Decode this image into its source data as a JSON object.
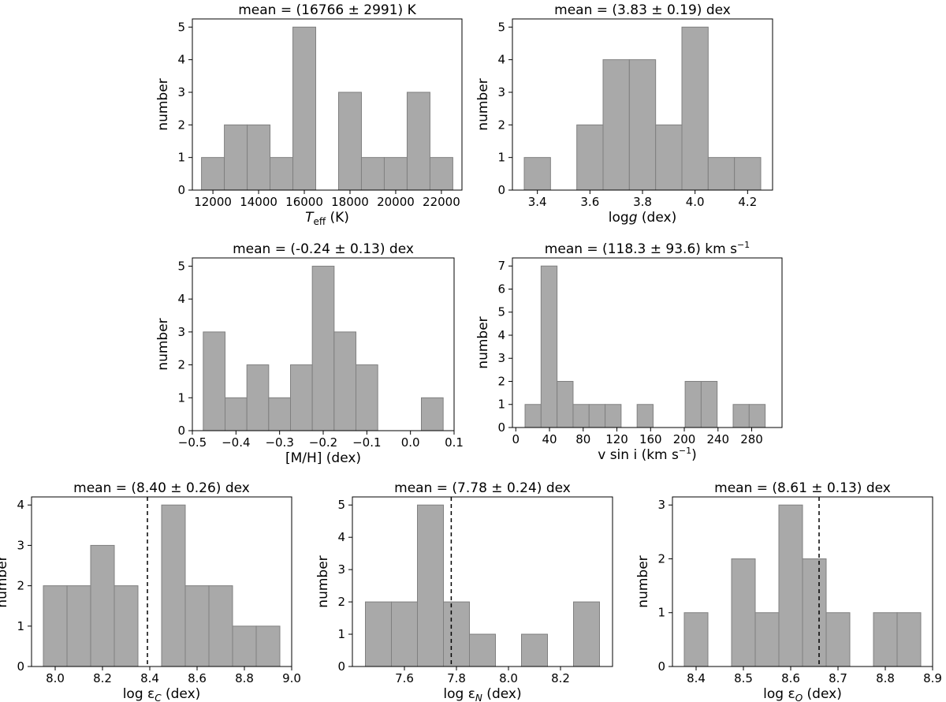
{
  "chart_data": [
    {
      "type": "bar",
      "id": "teff",
      "title": "mean = (16766 ± 2991) K",
      "xlabel_main": "T",
      "xlabel_sub": "eff",
      "xlabel_rest": " (K)",
      "ylabel": "number",
      "xlim": [
        11100,
        22900
      ],
      "ylim": [
        0,
        5.25
      ],
      "xticks": [
        12000,
        14000,
        16000,
        18000,
        20000,
        22000
      ],
      "xtick_labels": [
        "12000",
        "14000",
        "16000",
        "18000",
        "20000",
        "22000"
      ],
      "yticks": [
        0,
        1,
        2,
        3,
        4,
        5
      ],
      "ytick_labels": [
        "0",
        "1",
        "2",
        "3",
        "4",
        "5"
      ],
      "bins": [
        {
          "x0": 11500,
          "x1": 12500,
          "count": 1
        },
        {
          "x0": 12500,
          "x1": 13500,
          "count": 2
        },
        {
          "x0": 13500,
          "x1": 14500,
          "count": 2
        },
        {
          "x0": 14500,
          "x1": 15500,
          "count": 1
        },
        {
          "x0": 15500,
          "x1": 16500,
          "count": 5
        },
        {
          "x0": 17500,
          "x1": 18500,
          "count": 3
        },
        {
          "x0": 18500,
          "x1": 19500,
          "count": 1
        },
        {
          "x0": 19500,
          "x1": 20500,
          "count": 1
        },
        {
          "x0": 20500,
          "x1": 21500,
          "count": 3
        },
        {
          "x0": 21500,
          "x1": 22500,
          "count": 1
        }
      ]
    },
    {
      "type": "bar",
      "id": "logg",
      "title": "mean = (3.83 ± 0.19) dex",
      "xlabel_main": "log",
      "xlabel_sub": "g",
      "xlabel_rest": " (dex)",
      "ylabel": "number",
      "xlim": [
        3.305,
        4.295
      ],
      "ylim": [
        0,
        5.25
      ],
      "xticks": [
        3.4,
        3.6,
        3.8,
        4.0,
        4.2
      ],
      "xtick_labels": [
        "3.4",
        "3.6",
        "3.8",
        "4.0",
        "4.2"
      ],
      "yticks": [
        0,
        1,
        2,
        3,
        4,
        5
      ],
      "ytick_labels": [
        "0",
        "1",
        "2",
        "3",
        "4",
        "5"
      ],
      "bins": [
        {
          "x0": 3.35,
          "x1": 3.45,
          "count": 1
        },
        {
          "x0": 3.55,
          "x1": 3.65,
          "count": 2
        },
        {
          "x0": 3.65,
          "x1": 3.75,
          "count": 4
        },
        {
          "x0": 3.75,
          "x1": 3.85,
          "count": 4
        },
        {
          "x0": 3.85,
          "x1": 3.95,
          "count": 2
        },
        {
          "x0": 3.95,
          "x1": 4.05,
          "count": 5
        },
        {
          "x0": 4.05,
          "x1": 4.15,
          "count": 1
        },
        {
          "x0": 4.15,
          "x1": 4.25,
          "count": 1
        }
      ]
    },
    {
      "type": "bar",
      "id": "mh",
      "title": "mean = (-0.24 ± 0.13) dex",
      "xlabel_main": "[M/H] (dex)",
      "xlabel_sub": "",
      "xlabel_rest": "",
      "ylabel": "number",
      "xlim": [
        -0.5,
        0.1
      ],
      "ylim": [
        0,
        5.25
      ],
      "xticks": [
        -0.5,
        -0.4,
        -0.3,
        -0.2,
        -0.1,
        0.0,
        0.1
      ],
      "xtick_labels": [
        "−0.5",
        "−0.4",
        "−0.3",
        "−0.2",
        "−0.1",
        "0.0",
        "0.1"
      ],
      "yticks": [
        0,
        1,
        2,
        3,
        4,
        5
      ],
      "ytick_labels": [
        "0",
        "1",
        "2",
        "3",
        "4",
        "5"
      ],
      "bins": [
        {
          "x0": -0.475,
          "x1": -0.425,
          "count": 3
        },
        {
          "x0": -0.425,
          "x1": -0.375,
          "count": 1
        },
        {
          "x0": -0.375,
          "x1": -0.325,
          "count": 2
        },
        {
          "x0": -0.325,
          "x1": -0.275,
          "count": 1
        },
        {
          "x0": -0.275,
          "x1": -0.225,
          "count": 2
        },
        {
          "x0": -0.225,
          "x1": -0.175,
          "count": 5
        },
        {
          "x0": -0.175,
          "x1": -0.125,
          "count": 3
        },
        {
          "x0": -0.125,
          "x1": -0.075,
          "count": 2
        },
        {
          "x0": 0.025,
          "x1": 0.075,
          "count": 1
        }
      ]
    },
    {
      "type": "bar",
      "id": "vsini",
      "title": "mean = (118.3 ± 93.6) km s",
      "title_sup": "−1",
      "xlabel_main": "v sin i (km s",
      "xlabel_sup": "−1",
      "xlabel_close": ")",
      "ylabel": "number",
      "xlim": [
        -4,
        316
      ],
      "ylim": [
        0,
        7.35
      ],
      "xticks": [
        0,
        40,
        80,
        120,
        160,
        200,
        240,
        280
      ],
      "xtick_labels": [
        "0",
        "40",
        "80",
        "120",
        "160",
        "200",
        "240",
        "280"
      ],
      "yticks": [
        0,
        1,
        2,
        3,
        4,
        5,
        6,
        7
      ],
      "ytick_labels": [
        "0",
        "1",
        "2",
        "3",
        "4",
        "5",
        "6",
        "7"
      ],
      "bins": [
        {
          "x0": 11,
          "x1": 30,
          "count": 1
        },
        {
          "x0": 30,
          "x1": 49,
          "count": 7
        },
        {
          "x0": 49,
          "x1": 68,
          "count": 2
        },
        {
          "x0": 68,
          "x1": 87,
          "count": 1
        },
        {
          "x0": 87,
          "x1": 106,
          "count": 1
        },
        {
          "x0": 106,
          "x1": 125,
          "count": 1
        },
        {
          "x0": 144,
          "x1": 163,
          "count": 1
        },
        {
          "x0": 201,
          "x1": 220,
          "count": 2
        },
        {
          "x0": 220,
          "x1": 239,
          "count": 2
        },
        {
          "x0": 258,
          "x1": 277,
          "count": 1
        },
        {
          "x0": 277,
          "x1": 296,
          "count": 1
        }
      ]
    },
    {
      "type": "bar",
      "id": "logeps-c",
      "title": "mean = (8.40 ± 0.26) dex",
      "xlabel_main": "log ε",
      "xlabel_sub": "C",
      "xlabel_rest": " (dex)",
      "ylabel": "number",
      "xlim": [
        7.9,
        9.0
      ],
      "ylim": [
        0,
        4.2
      ],
      "xticks": [
        8.0,
        8.2,
        8.4,
        8.6,
        8.8,
        9.0
      ],
      "xtick_labels": [
        "8.0",
        "8.2",
        "8.4",
        "8.6",
        "8.8",
        "9.0"
      ],
      "yticks": [
        0,
        1,
        2,
        3,
        4
      ],
      "ytick_labels": [
        "0",
        "1",
        "2",
        "3",
        "4"
      ],
      "ref_line": 8.39,
      "bins": [
        {
          "x0": 7.95,
          "x1": 8.05,
          "count": 2
        },
        {
          "x0": 8.05,
          "x1": 8.15,
          "count": 2
        },
        {
          "x0": 8.15,
          "x1": 8.25,
          "count": 3
        },
        {
          "x0": 8.25,
          "x1": 8.35,
          "count": 2
        },
        {
          "x0": 8.45,
          "x1": 8.55,
          "count": 4
        },
        {
          "x0": 8.55,
          "x1": 8.65,
          "count": 2
        },
        {
          "x0": 8.65,
          "x1": 8.75,
          "count": 2
        },
        {
          "x0": 8.75,
          "x1": 8.85,
          "count": 1
        },
        {
          "x0": 8.85,
          "x1": 8.95,
          "count": 1
        }
      ]
    },
    {
      "type": "bar",
      "id": "logeps-n",
      "title": "mean = (7.78 ± 0.24) dex",
      "xlabel_main": "log ε",
      "xlabel_sub": "N",
      "xlabel_rest": " (dex)",
      "ylabel": "number",
      "xlim": [
        7.4,
        8.4
      ],
      "ylim": [
        0,
        5.25
      ],
      "xticks": [
        7.6,
        7.8,
        8.0,
        8.2
      ],
      "xtick_labels": [
        "7.6",
        "7.8",
        "8.0",
        "8.2"
      ],
      "yticks": [
        0,
        1,
        2,
        3,
        4,
        5
      ],
      "ytick_labels": [
        "0",
        "1",
        "2",
        "3",
        "4",
        "5"
      ],
      "ref_line": 7.78,
      "bins": [
        {
          "x0": 7.45,
          "x1": 7.55,
          "count": 2
        },
        {
          "x0": 7.55,
          "x1": 7.65,
          "count": 2
        },
        {
          "x0": 7.65,
          "x1": 7.75,
          "count": 5
        },
        {
          "x0": 7.75,
          "x1": 7.85,
          "count": 2
        },
        {
          "x0": 7.85,
          "x1": 7.95,
          "count": 1
        },
        {
          "x0": 8.05,
          "x1": 8.15,
          "count": 1
        },
        {
          "x0": 8.25,
          "x1": 8.35,
          "count": 2
        }
      ]
    },
    {
      "type": "bar",
      "id": "logeps-o",
      "title": "mean = (8.61 ± 0.13) dex",
      "xlabel_main": "log ε",
      "xlabel_sub": "O",
      "xlabel_rest": " (dex)",
      "ylabel": "number",
      "xlim": [
        8.35,
        8.9
      ],
      "ylim": [
        0,
        3.15
      ],
      "xticks": [
        8.4,
        8.5,
        8.6,
        8.7,
        8.8,
        8.9
      ],
      "xtick_labels": [
        "8.4",
        "8.5",
        "8.6",
        "8.7",
        "8.8",
        "8.9"
      ],
      "yticks": [
        0,
        1,
        2,
        3
      ],
      "ytick_labels": [
        "0",
        "1",
        "2",
        "3"
      ],
      "ref_line": 8.66,
      "bins": [
        {
          "x0": 8.375,
          "x1": 8.425,
          "count": 1
        },
        {
          "x0": 8.475,
          "x1": 8.525,
          "count": 2
        },
        {
          "x0": 8.525,
          "x1": 8.575,
          "count": 1
        },
        {
          "x0": 8.575,
          "x1": 8.625,
          "count": 3
        },
        {
          "x0": 8.625,
          "x1": 8.675,
          "count": 2
        },
        {
          "x0": 8.675,
          "x1": 8.725,
          "count": 1
        },
        {
          "x0": 8.775,
          "x1": 8.825,
          "count": 1
        },
        {
          "x0": 8.825,
          "x1": 8.875,
          "count": 1
        }
      ]
    }
  ]
}
